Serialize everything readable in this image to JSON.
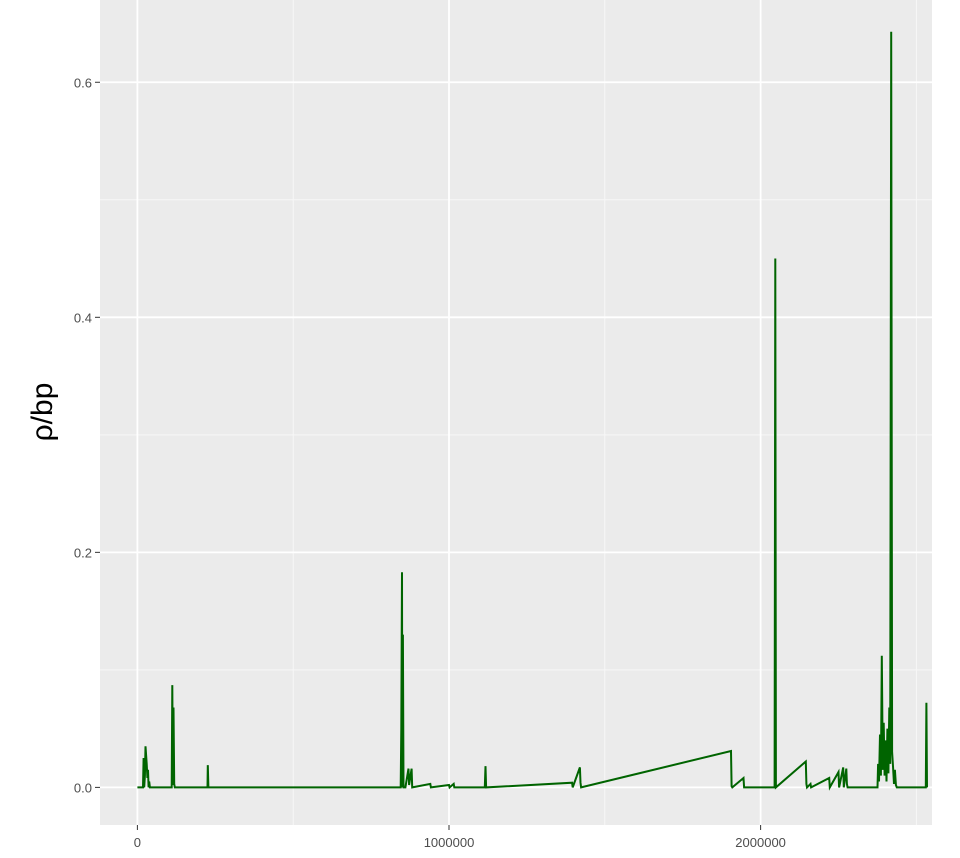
{
  "chart_data": {
    "type": "line",
    "title": "",
    "xlabel": "",
    "ylabel": "ρ/bp",
    "xlim": [
      -120000,
      2550000
    ],
    "ylim": [
      -0.032,
      0.67
    ],
    "x_ticks": [
      0,
      1000000,
      2000000
    ],
    "x_tick_labels": [
      "0",
      "1000000",
      "2000000"
    ],
    "y_ticks": [
      0.0,
      0.2,
      0.4,
      0.6
    ],
    "y_tick_labels": [
      "0.0",
      "0.2",
      "0.4",
      "0.6"
    ],
    "grid": true,
    "legend": "none",
    "series": [
      {
        "color": "#006400",
        "x": [
          0,
          18000,
          20000,
          22000,
          24000,
          26000,
          30000,
          32000,
          34000,
          36000,
          38000,
          40000,
          42000,
          110000,
          112000,
          114000,
          116000,
          118000,
          120000,
          122000,
          225000,
          226000,
          228000,
          600000,
          610000,
          845000,
          847000,
          849000,
          850000,
          852000,
          854000,
          856000,
          858000,
          860000,
          870000,
          872000,
          880000,
          882000,
          940000,
          942000,
          1000000,
          1002000,
          1015000,
          1017000,
          1115000,
          1117000,
          1119000,
          1395000,
          1397000,
          1420000,
          1422000,
          1424000,
          1905000,
          1907000,
          1909000,
          1945000,
          1947000,
          2045000,
          2047000,
          2049000,
          2145000,
          2147000,
          2149000,
          2160000,
          2162000,
          2220000,
          2222000,
          2250000,
          2252000,
          2265000,
          2267000,
          2275000,
          2277000,
          2279000,
          2375000,
          2377000,
          2380000,
          2383000,
          2386000,
          2389000,
          2392000,
          2395000,
          2398000,
          2401000,
          2404000,
          2407000,
          2410000,
          2413000,
          2416000,
          2419000,
          2422000,
          2425000,
          2428000,
          2431000,
          2434000,
          2437000,
          2440000,
          2443000,
          2446000,
          2500000,
          2530000,
          2532000,
          2534000
        ],
        "y": [
          0,
          0,
          0.025,
          0,
          0.01,
          0.035,
          0.02,
          0.008,
          0.015,
          0,
          0.005,
          0,
          0,
          0,
          0.087,
          0.002,
          0.068,
          0.003,
          0,
          0,
          0,
          0.019,
          0,
          0,
          0,
          0,
          0.05,
          0.183,
          0,
          0.13,
          0,
          0,
          0,
          0,
          0.016,
          0.002,
          0.016,
          0,
          0.003,
          0,
          0.002,
          0,
          0.003,
          0,
          0,
          0.018,
          0,
          0.004,
          0,
          0.017,
          0.004,
          0,
          0.031,
          0.001,
          0,
          0.008,
          0,
          0,
          0.45,
          0,
          0.022,
          0.003,
          0,
          0.003,
          0,
          0.008,
          0,
          0.013,
          0,
          0.017,
          0,
          0.016,
          0.003,
          0,
          0,
          0.02,
          0.005,
          0.045,
          0.01,
          0.112,
          0.015,
          0.055,
          0.01,
          0.04,
          0.005,
          0.05,
          0.012,
          0.068,
          0.02,
          0.643,
          0.03,
          0.018,
          0.003,
          0.015,
          0.002,
          0,
          0,
          0,
          0,
          0,
          0,
          0.072,
          0
        ]
      }
    ]
  }
}
